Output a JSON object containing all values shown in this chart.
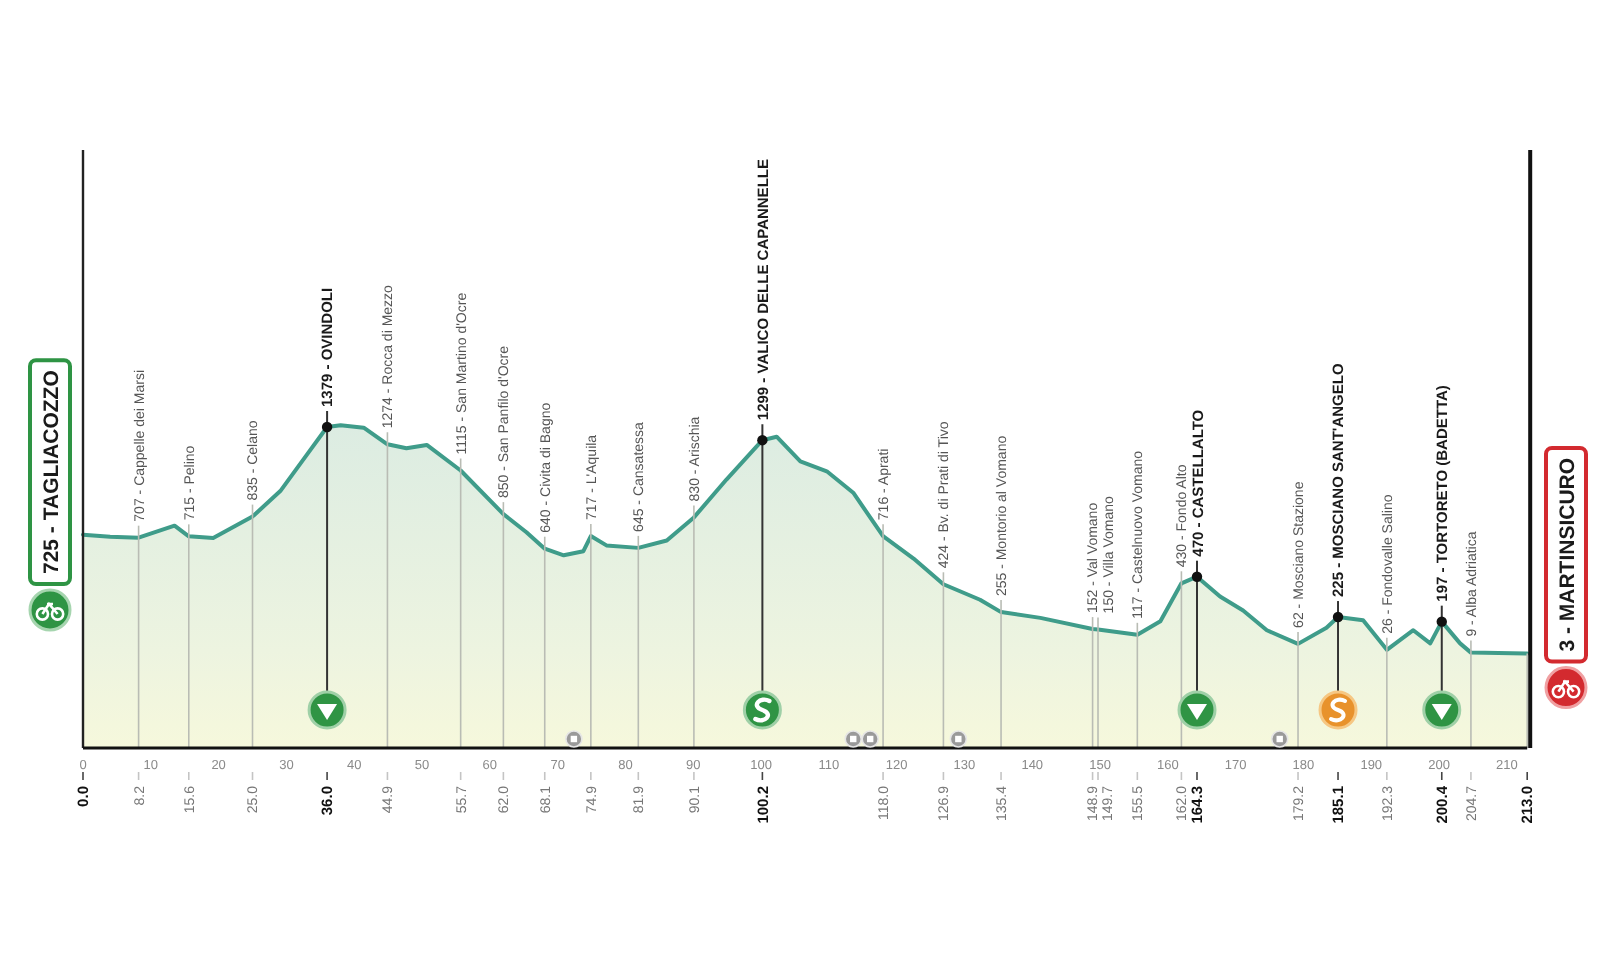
{
  "chart_data": {
    "type": "area",
    "x": [
      0,
      4,
      8.2,
      13.5,
      15.6,
      19.2,
      25,
      29.1,
      33,
      36,
      38,
      41.4,
      44.9,
      47.7,
      50.7,
      55.7,
      62,
      65.4,
      68.1,
      70.9,
      73.8,
      74.9,
      77.2,
      81.9,
      86.1,
      90.1,
      94.9,
      100.2,
      102.3,
      105.8,
      109.7,
      113.6,
      118,
      122.5,
      126.9,
      132.3,
      135.4,
      141.2,
      148.9,
      149.7,
      155.5,
      158.9,
      162,
      164.3,
      167.7,
      171.1,
      174.6,
      179.2,
      183.4,
      185.1,
      188.8,
      192.3,
      196.2,
      198.7,
      200.4,
      203.1,
      204.7,
      213
    ],
    "values": [
      725,
      712,
      707,
      780,
      715,
      705,
      835,
      990,
      1210,
      1379,
      1390,
      1375,
      1274,
      1250,
      1270,
      1115,
      850,
      740,
      640,
      600,
      625,
      717,
      660,
      645,
      690,
      830,
      1060,
      1299,
      1320,
      1170,
      1110,
      980,
      716,
      580,
      424,
      330,
      255,
      220,
      152,
      150,
      117,
      200,
      430,
      470,
      350,
      265,
      145,
      62,
      160,
      225,
      205,
      26,
      145,
      65,
      197,
      65,
      9,
      3
    ],
    "value_labels": [
      "725 - TAGLIACOZZO",
      null,
      "707 - Cappelle dei Marsi",
      null,
      "715 - Pelino",
      null,
      "835 - Celano",
      null,
      null,
      null,
      null,
      null,
      "1274 - Rocca di Mezzo",
      null,
      null,
      "1115 - San Martino d'Ocre",
      "850 - San Panfilo d'Ocre",
      null,
      "640 - Civita di Bagno",
      null,
      null,
      "717 - L'Aquila",
      null,
      "645 - Cansatessa",
      null,
      "830 - Arischia",
      null,
      null,
      null,
      null,
      null,
      null,
      "716 - Aprati",
      null,
      "424 - Bv. di Prati di Tivo",
      null,
      "255 - Montorio al Vomano",
      null,
      "152 - Val Vomano",
      "150 - Villa Vomano",
      "117 - Castelnuovo Vomano",
      null,
      "430 - Fondo Alto",
      null,
      null,
      null,
      null,
      "62 - Mosciano Stazione",
      null,
      null,
      null,
      "26 - Fondovalle Salino",
      null,
      null,
      null,
      null,
      "9 - Alba Adriatica",
      "3 - MARTINSICURO"
    ],
    "color": "#3f9c8a",
    "xlim": [
      0,
      213
    ],
    "xticks": [
      0,
      10,
      20,
      30,
      40,
      50,
      60,
      70,
      80,
      90,
      100,
      110,
      120,
      130,
      140,
      150,
      160,
      170,
      180,
      190,
      200,
      210
    ],
    "x2lim": [
      0,
      213
    ],
    "x2ticks": [
      {
        "value": 0,
        "label": "0.0"
      },
      8.2,
      15.6,
      {
        "value": 25,
        "label": "25.0"
      },
      {
        "value": 36,
        "label": "36.0"
      },
      44.9,
      55.7,
      {
        "value": 62,
        "label": "62.0"
      },
      68.1,
      74.9,
      81.9,
      90.1,
      100.2,
      {
        "value": 118,
        "label": "118.0"
      },
      126.9,
      135.4,
      148.9,
      149.7,
      155.5,
      {
        "value": 162,
        "label": "162.0"
      },
      164.3,
      179.2,
      185.1,
      192.3,
      200.4,
      204.7,
      {
        "value": 213,
        "label": "213.0"
      }
    ],
    "tick_labels": "x",
    "grid": "x",
    "annotations": [
      {
        "text": "1379 - OVINDOLI",
        "x": 36,
        "y": 1379
      },
      {
        "text": "1299 - VALICO DELLE CAPANNELLE",
        "x": 100.2,
        "y": 1299
      },
      {
        "text": "470 - CASTELLALTO",
        "x": 164.3,
        "y": 470
      },
      {
        "text": "225 - MOSCIANO SANT'ANGELO",
        "x": 185.1,
        "y": 225
      },
      {
        "text": "197 - TORTORETO (BADETTA)",
        "x": 200.4,
        "y": 197
      }
    ]
  }
}
